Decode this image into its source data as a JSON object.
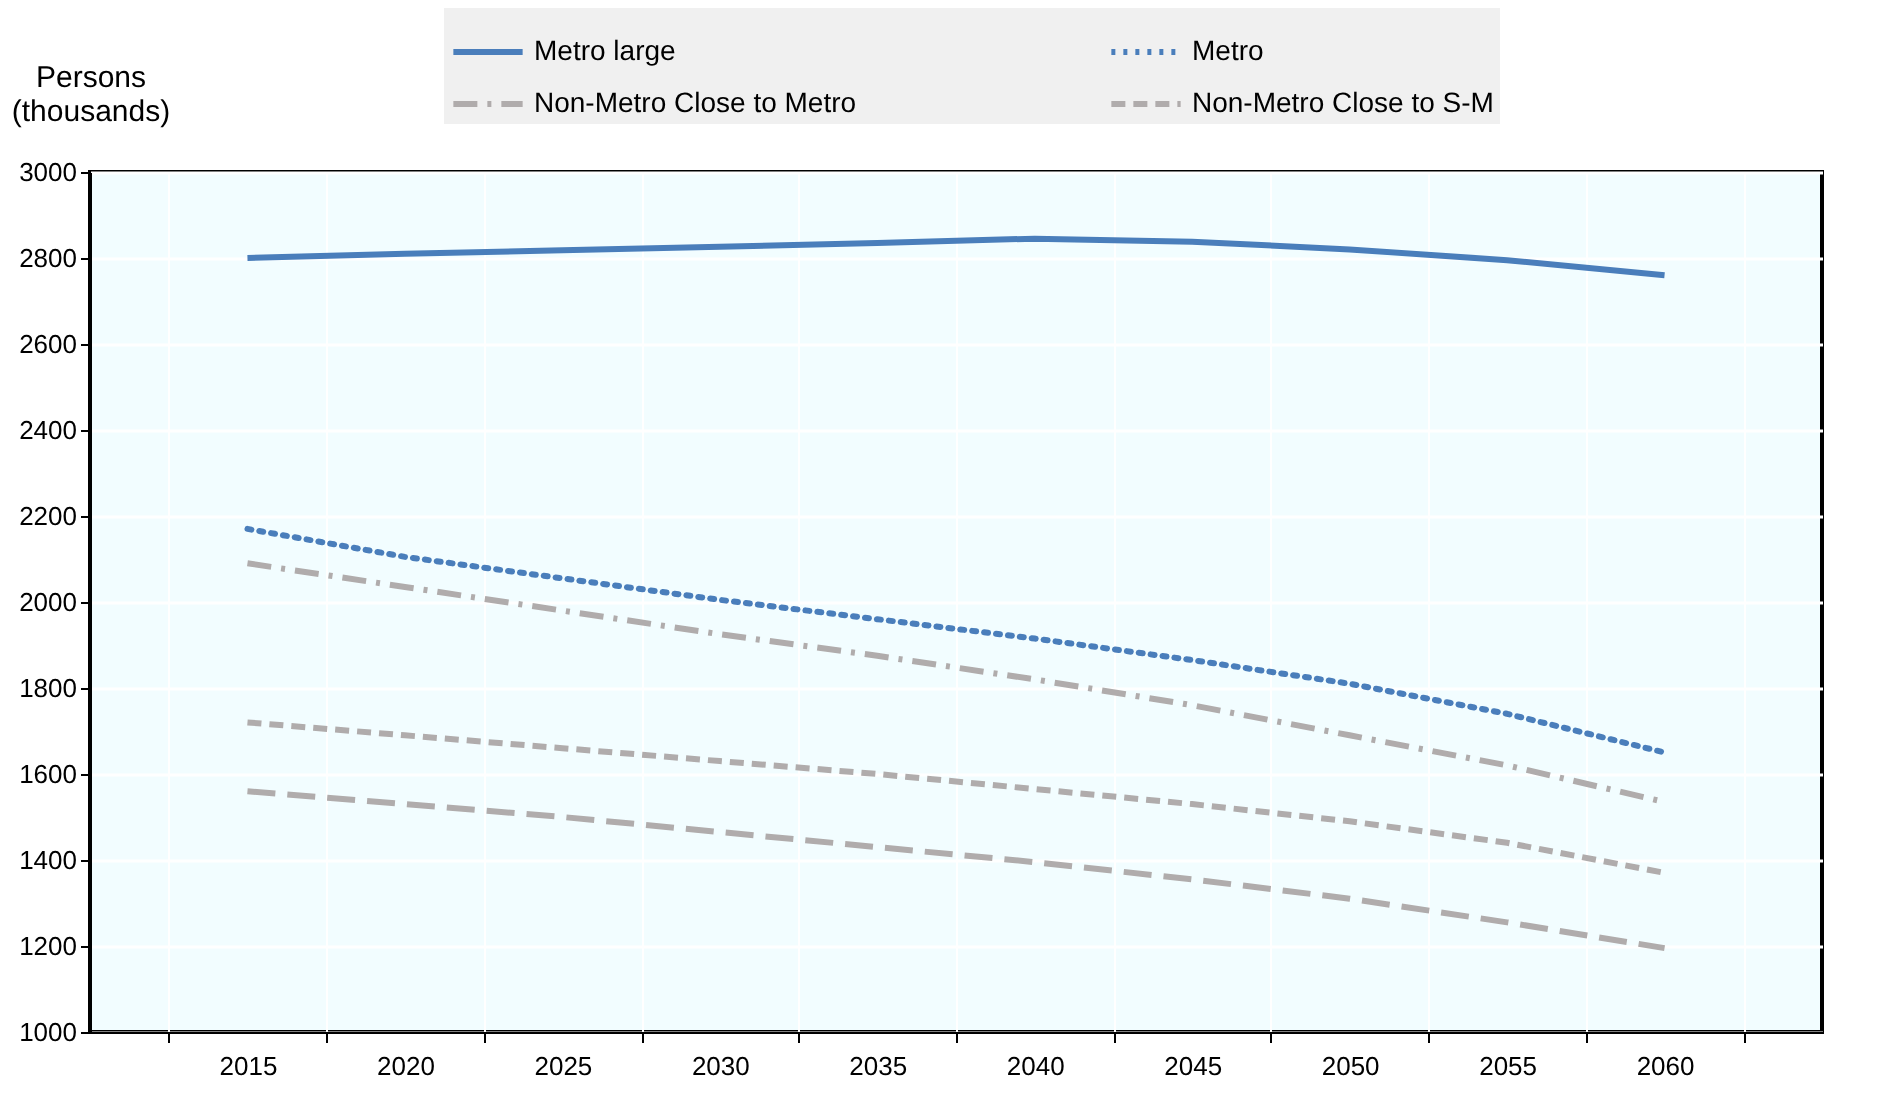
{
  "chart_data": {
    "type": "line",
    "ylabel": "Persons (thousands)",
    "categories": [
      "2015",
      "2020",
      "2025",
      "2030",
      "2035",
      "2040",
      "2045",
      "2050",
      "2055",
      "2060"
    ],
    "ylim": [
      1000,
      3000
    ],
    "yticks": [
      1000,
      1200,
      1400,
      1600,
      1800,
      2000,
      2200,
      2400,
      2600,
      2800,
      3000
    ],
    "grid": true,
    "legend": "top",
    "marker": "none",
    "series": [
      {
        "name": "Metro large",
        "color": "#4a7ebb",
        "line_style": "solid",
        "values": [
          2800,
          2810,
          2818,
          2826,
          2835,
          2845,
          2838,
          2820,
          2795,
          2760
        ]
      },
      {
        "name": "Metro",
        "color": "#4a7ebb",
        "line_style": "dotted",
        "values": [
          2170,
          2105,
          2055,
          2005,
          1960,
          1915,
          1865,
          1810,
          1740,
          1650
        ]
      },
      {
        "name": "Non-Metro Close to Metro",
        "color": "#b0acac",
        "line_style": "dashdot",
        "values": [
          2090,
          2035,
          1980,
          1925,
          1875,
          1820,
          1760,
          1690,
          1620,
          1535
        ]
      },
      {
        "name": "Non-Metro Close to S-M",
        "color": "#b0acac",
        "line_style": "dashed",
        "values": [
          1720,
          1690,
          1660,
          1630,
          1600,
          1565,
          1530,
          1490,
          1440,
          1370
        ]
      },
      {
        "color": "#b0acac",
        "line_style": "longdash",
        "values": [
          1560,
          1530,
          1500,
          1465,
          1430,
          1395,
          1355,
          1310,
          1255,
          1195
        ]
      }
    ]
  }
}
